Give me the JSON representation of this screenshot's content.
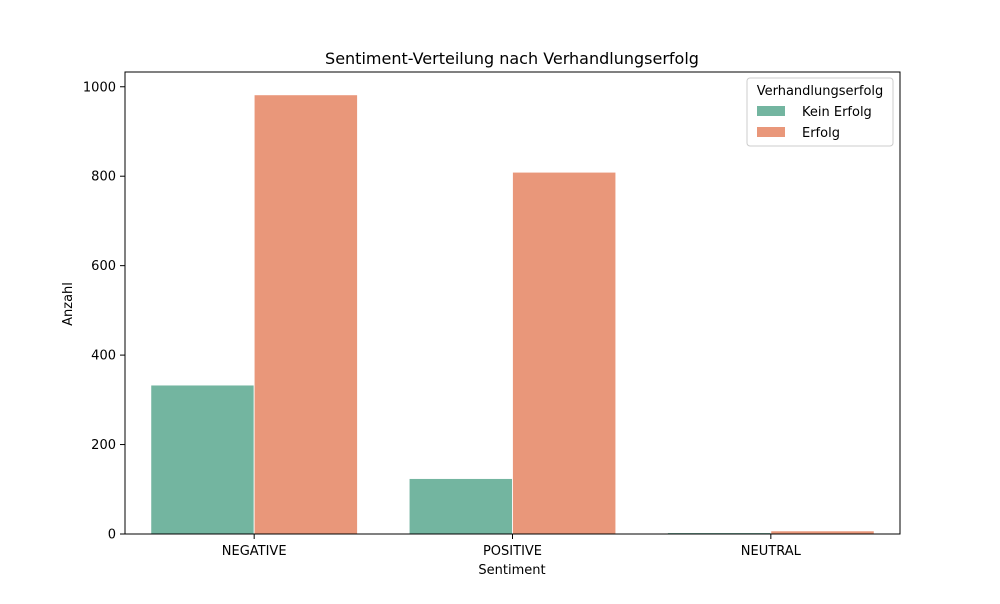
{
  "chart_data": {
    "type": "bar",
    "title": "Sentiment-Verteilung nach Verhandlungserfolg",
    "xlabel": "Sentiment",
    "ylabel": "Anzahl",
    "categories": [
      "NEGATIVE",
      "POSITIVE",
      "NEUTRAL"
    ],
    "series": [
      {
        "name": "Kein Erfolg",
        "values": [
          333,
          124,
          3
        ],
        "color": "#73b5a0"
      },
      {
        "name": "Erfolg",
        "values": [
          982,
          809,
          7
        ],
        "color": "#e9977a"
      }
    ],
    "ylim": [
      0,
      1033
    ],
    "yticks": [
      0,
      200,
      400,
      600,
      800,
      1000
    ],
    "grid": false,
    "legend": {
      "title": "Verhandlungserfolg",
      "placement": "top-right"
    }
  }
}
